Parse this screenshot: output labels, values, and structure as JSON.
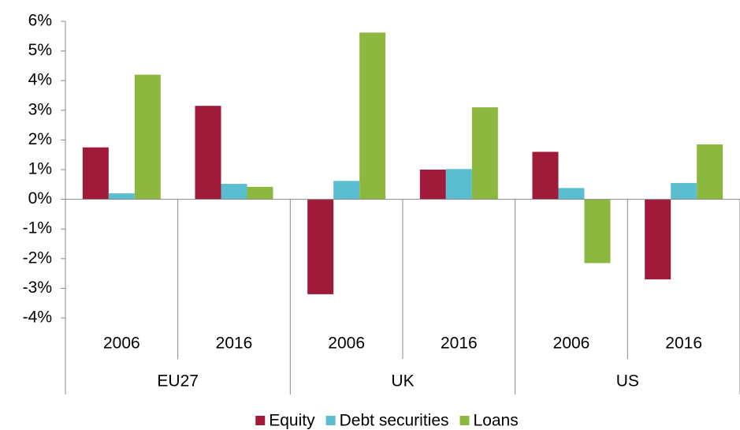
{
  "chart_data": {
    "type": "bar",
    "categories": [
      "2006",
      "2016",
      "2006",
      "2016",
      "2006",
      "2016"
    ],
    "groups": [
      "EU27",
      "UK",
      "US"
    ],
    "series": [
      {
        "name": "Equity",
        "color": "#a01a3a",
        "values": [
          1.75,
          3.15,
          -3.2,
          1.0,
          1.6,
          -2.7
        ]
      },
      {
        "name": "Debt securities",
        "color": "#5bbdd0",
        "values": [
          0.2,
          0.52,
          0.62,
          1.02,
          0.38,
          0.55
        ]
      },
      {
        "name": "Loans",
        "color": "#8db840",
        "values": [
          4.2,
          0.42,
          5.62,
          3.1,
          -2.15,
          1.85
        ]
      }
    ],
    "ylim": [
      -4,
      6
    ],
    "yticks": [
      {
        "value": -4,
        "label": "-4%"
      },
      {
        "value": -3,
        "label": "-3%"
      },
      {
        "value": -2,
        "label": "-2%"
      },
      {
        "value": -1,
        "label": "-1%"
      },
      {
        "value": 0,
        "label": "0%"
      },
      {
        "value": 1,
        "label": "1%"
      },
      {
        "value": 2,
        "label": "2%"
      },
      {
        "value": 3,
        "label": "3%"
      },
      {
        "value": 4,
        "label": "4%"
      },
      {
        "value": 5,
        "label": "5%"
      },
      {
        "value": 6,
        "label": "6%"
      }
    ],
    "legend": "bottom"
  }
}
